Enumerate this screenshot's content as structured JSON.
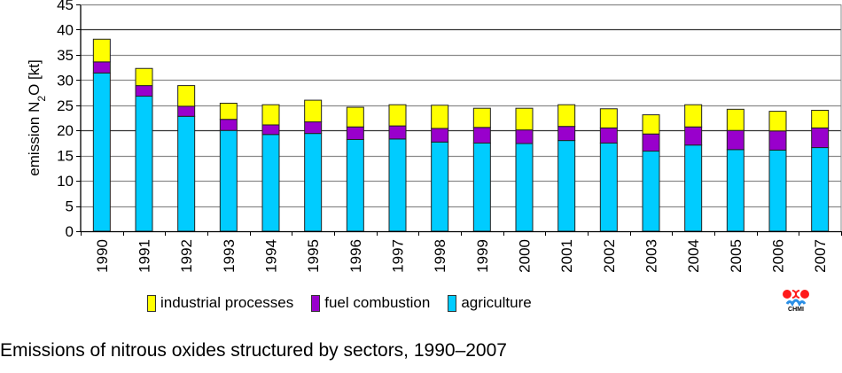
{
  "chart_data": {
    "type": "bar",
    "stacked": true,
    "title": "Emissions of nitrous oxides structured by sectors, 1990–2007",
    "xlabel": "",
    "ylabel": "emission N2O [kt]",
    "ylabel_parts": {
      "pre": "emission N",
      "sub": "2",
      "post": "O [kt]"
    },
    "ylim": [
      0,
      45
    ],
    "yticks": [
      0,
      5,
      10,
      15,
      20,
      25,
      30,
      35,
      40,
      45
    ],
    "grid": true,
    "legend_position": "bottom",
    "categories": [
      "1990",
      "1991",
      "1992",
      "1993",
      "1994",
      "1995",
      "1996",
      "1997",
      "1998",
      "1999",
      "2000",
      "2001",
      "2002",
      "2003",
      "2004",
      "2005",
      "2006",
      "2007"
    ],
    "series": [
      {
        "name": "agriculture",
        "color": "#00CCFF",
        "values": [
          31.4,
          26.8,
          22.8,
          20.0,
          19.2,
          19.4,
          18.2,
          18.3,
          17.7,
          17.5,
          17.4,
          18.0,
          17.5,
          15.9,
          17.1,
          16.2,
          16.1,
          16.6
        ]
      },
      {
        "name": "fuel combustion",
        "color": "#9900CC",
        "values": [
          2.2,
          2.1,
          2.0,
          2.2,
          1.9,
          2.3,
          2.5,
          2.6,
          2.7,
          3.1,
          2.7,
          2.8,
          3.0,
          3.4,
          3.6,
          3.8,
          3.8,
          3.9
        ]
      },
      {
        "name": "industrial processes",
        "color": "#FFFF00",
        "values": [
          4.5,
          3.4,
          4.1,
          3.2,
          4.0,
          4.3,
          3.9,
          4.2,
          4.6,
          3.8,
          4.3,
          4.3,
          3.8,
          3.8,
          4.4,
          4.2,
          3.9,
          3.5
        ]
      }
    ]
  },
  "legend": {
    "items": [
      {
        "label": "industrial processes",
        "color": "#FFFF00"
      },
      {
        "label": "fuel combustion",
        "color": "#9900CC"
      },
      {
        "label": "agriculture",
        "color": "#00CCFF"
      }
    ]
  },
  "logo": {
    "text": "CHMI"
  },
  "caption": "Emissions of nitrous oxides structured by sectors, 1990–2007"
}
